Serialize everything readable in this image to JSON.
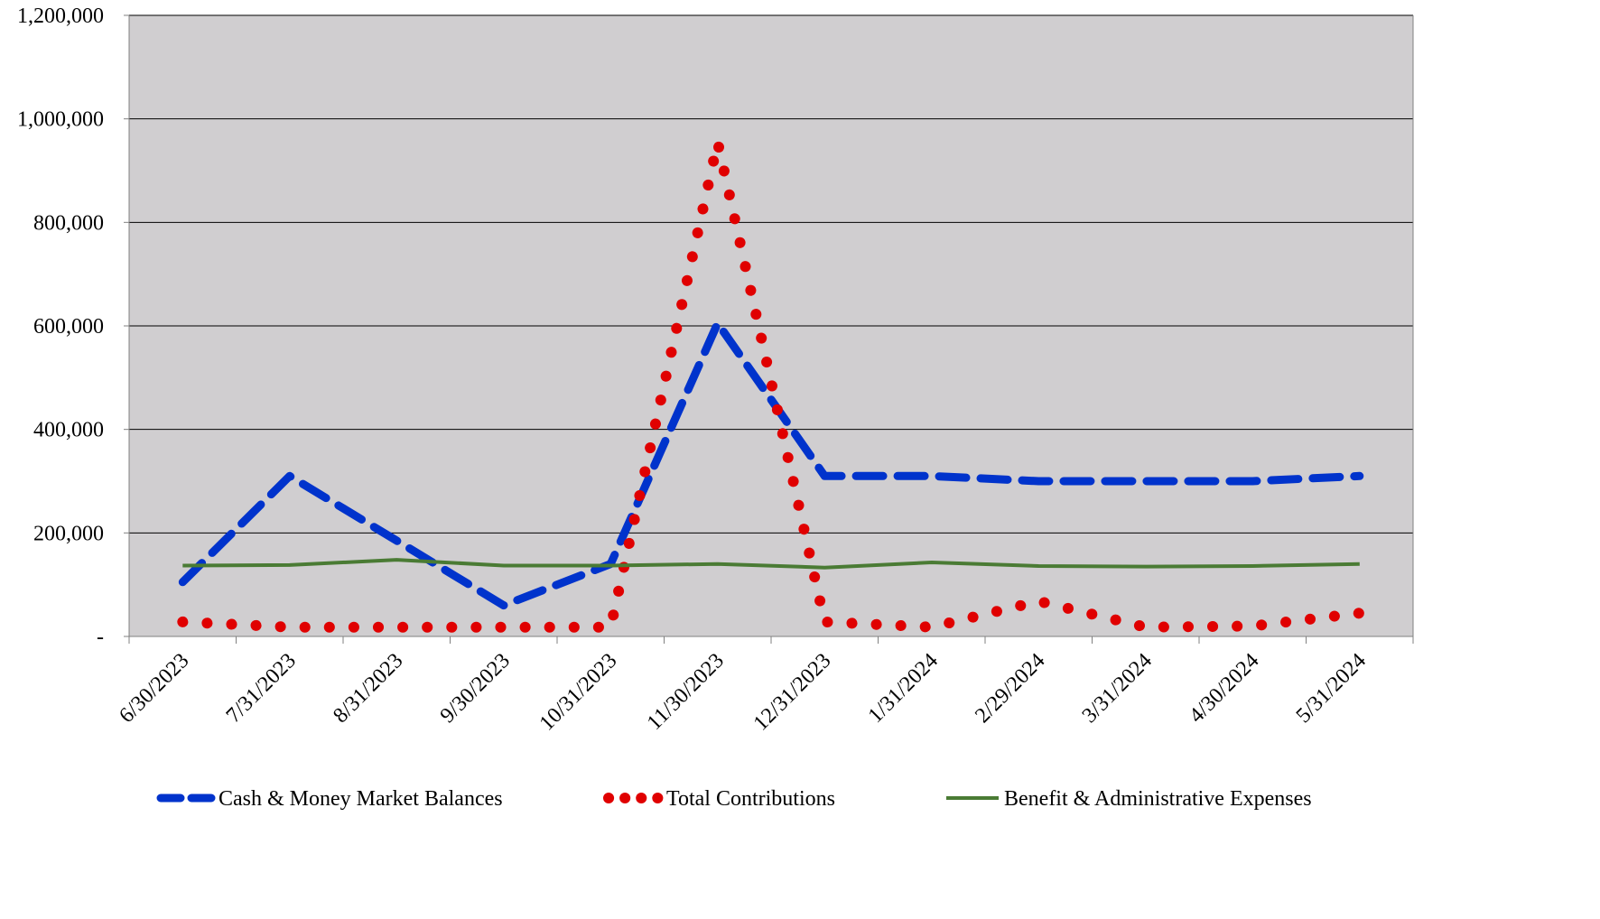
{
  "chart_data": {
    "type": "line",
    "title": "",
    "xlabel": "",
    "ylabel": "",
    "categories": [
      "6/30/2023",
      "7/31/2023",
      "8/31/2023",
      "9/30/2023",
      "10/31/2023",
      "11/30/2023",
      "12/31/2023",
      "1/31/2024",
      "2/29/2024",
      "3/31/2024",
      "4/30/2024",
      "5/31/2024"
    ],
    "ylim": [
      0,
      1200000
    ],
    "yticks": [
      0,
      200000,
      400000,
      600000,
      800000,
      1000000,
      1200000
    ],
    "ytick_labels": [
      "-",
      "200,000",
      "400,000",
      "600,000",
      "800,000",
      "1,000,000",
      "1,200,000"
    ],
    "grid": "horizontal",
    "plot_background": "#d0ced0",
    "legend_position": "bottom",
    "series": [
      {
        "name": "Cash & Money Market Balances",
        "style": "dashed",
        "color": "#0033cc",
        "values": [
          105000,
          310000,
          185000,
          60000,
          140000,
          605000,
          310000,
          310000,
          300000,
          300000,
          300000,
          310000
        ]
      },
      {
        "name": "Total Contributions",
        "style": "dotted",
        "color": "#e00000",
        "values": [
          28000,
          18000,
          18000,
          18000,
          18000,
          955000,
          28000,
          18000,
          68000,
          18000,
          20000,
          45000
        ]
      },
      {
        "name": "Benefit & Administrative Expenses",
        "style": "solid",
        "color": "#4a7b34",
        "values": [
          137000,
          138000,
          148000,
          137000,
          137000,
          140000,
          133000,
          143000,
          136000,
          135000,
          136000,
          140000
        ]
      }
    ]
  }
}
